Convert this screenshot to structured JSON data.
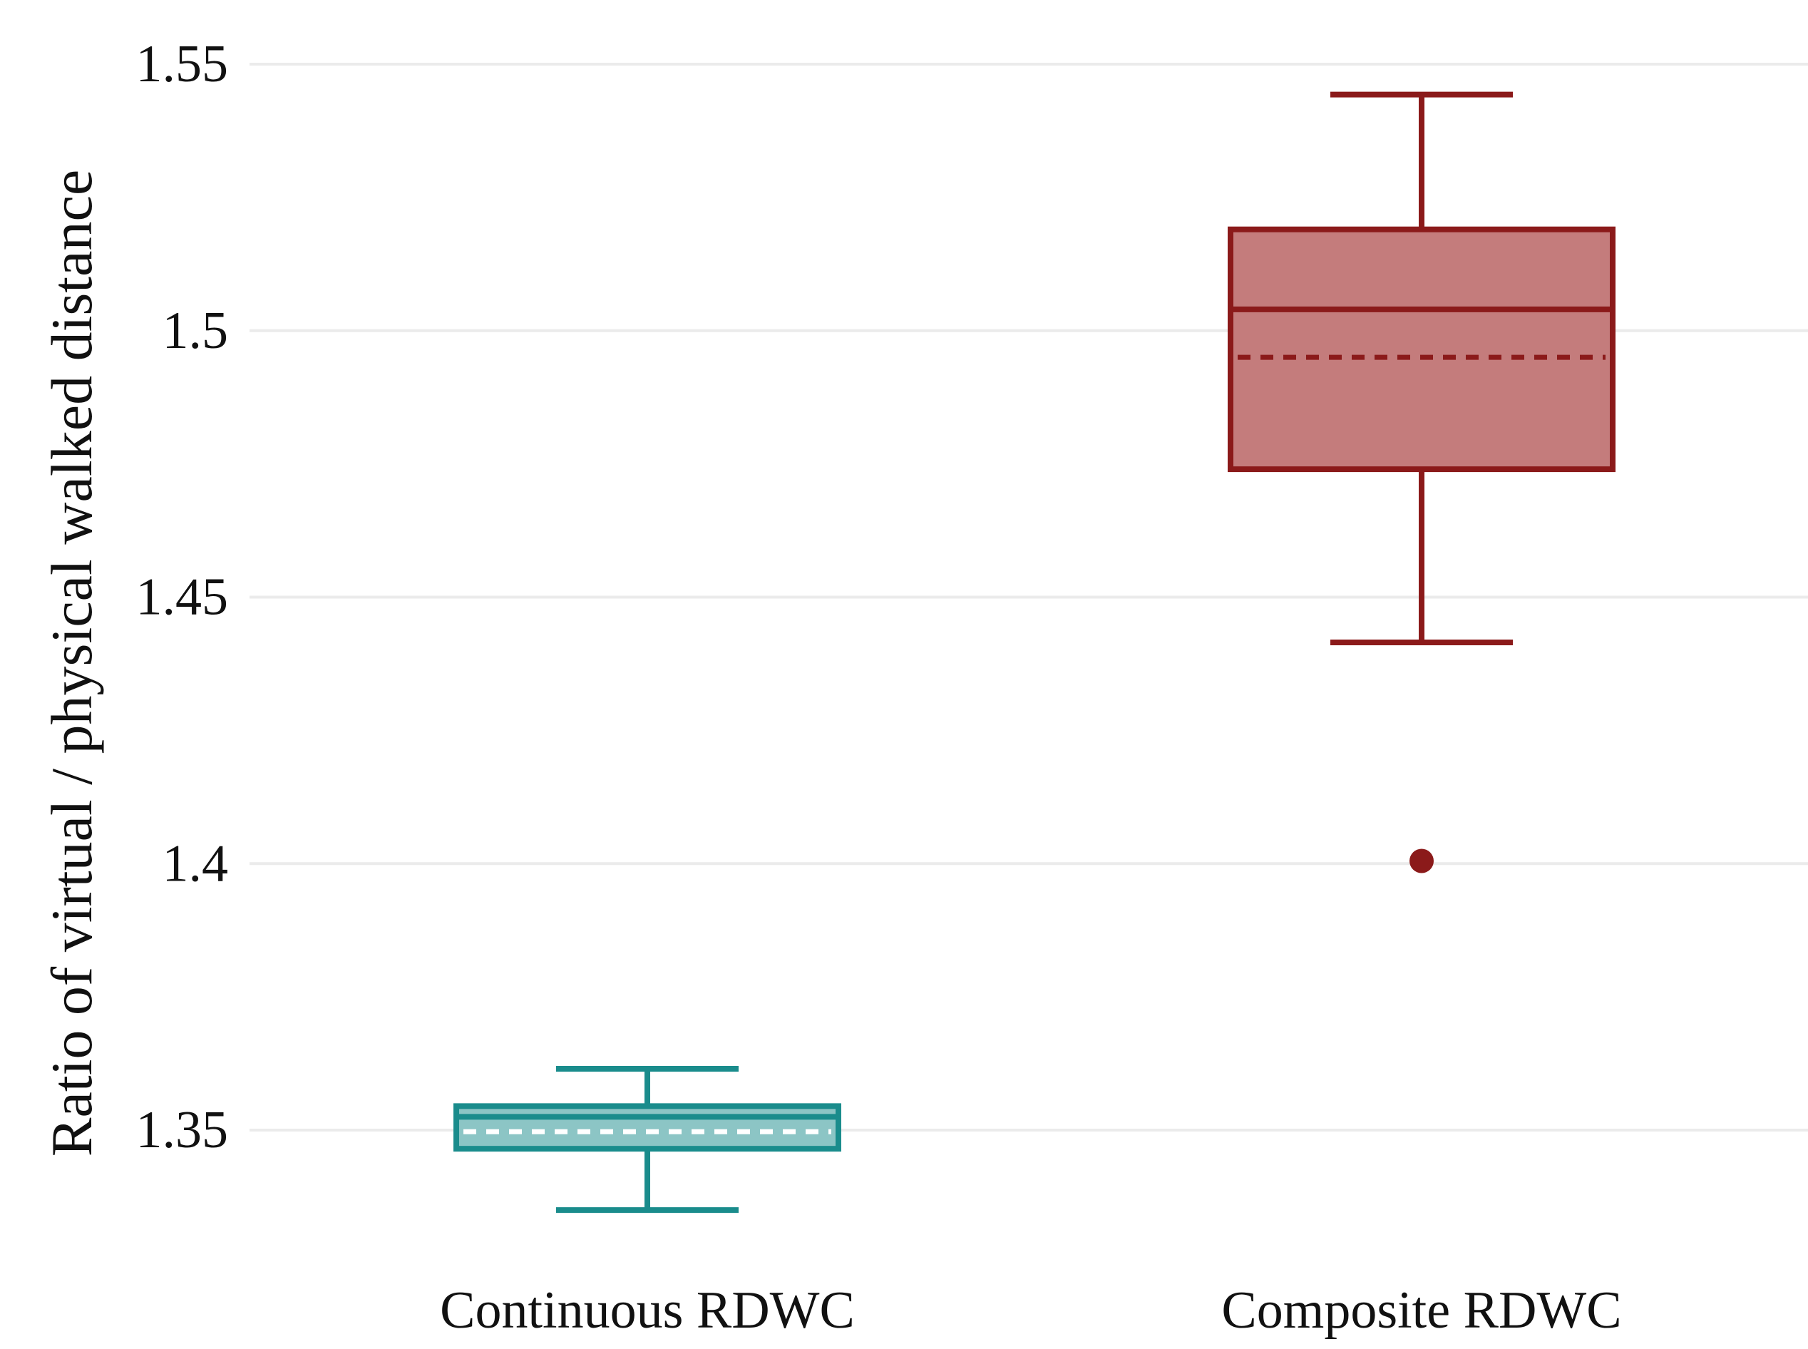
{
  "chart_data": {
    "type": "box",
    "ylabel": "Ratio of virtual / physical walked distance",
    "xlabel": "",
    "ylim": [
      1.325,
      1.56
    ],
    "yticks": [
      1.35,
      1.4,
      1.45,
      1.5,
      1.55
    ],
    "ytick_labels": [
      "1.35",
      "1.4",
      "1.45",
      "1.5",
      "1.55"
    ],
    "grid": true,
    "categories": [
      "Continuous RDWC",
      "Composite RDWC"
    ],
    "boxes": [
      {
        "category": "Continuous RDWC",
        "whisker_low": 1.335,
        "q1": 1.3465,
        "median": 1.3525,
        "mean": 1.3497,
        "q3": 1.3545,
        "whisker_high": 1.3615,
        "outliers": [],
        "color": "#1a8c8c",
        "fill": "#8cc5c5"
      },
      {
        "category": "Composite RDWC",
        "whisker_low": 1.4415,
        "q1": 1.474,
        "median": 1.504,
        "mean": 1.495,
        "q3": 1.519,
        "whisker_high": 1.5443,
        "outliers": [
          1.4005
        ],
        "color": "#8b1a1a",
        "fill": "#c47c7c"
      }
    ]
  }
}
